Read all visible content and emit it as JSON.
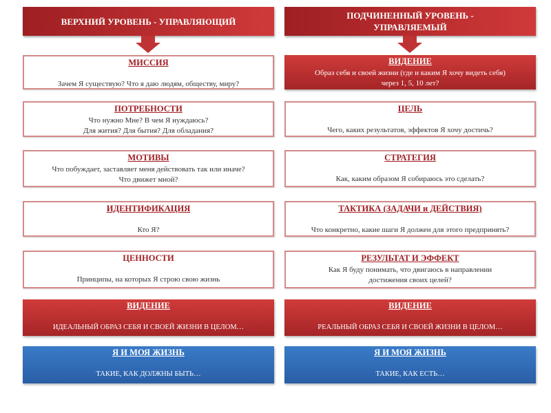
{
  "left": {
    "header": "ВЕРХНИЙ  УРОВЕНЬ - УПРАВЛЯЮЩИЙ",
    "boxes": [
      {
        "title": "МИССИЯ",
        "text": "Зачем Я существую? Что я даю людям, обществу, миру?"
      },
      {
        "title": "ПОТРЕБНОСТИ",
        "text": "Что нужно Мне? В чем Я нуждаюсь?",
        "text2": "Для жития? Для бытия? Для обладания?"
      },
      {
        "title": "МОТИВЫ",
        "text": "Что побуждает, заставляет меня действовать так или иначе?",
        "text2": "Что движет мной?"
      },
      {
        "title": "ИДЕНТИФИКАЦИЯ",
        "text": "Кто Я?"
      },
      {
        "title": "ЦЕННОСТИ",
        "text": "Принципы, на которых Я строю свою жизнь"
      },
      {
        "title": "ВИДЕНИЕ",
        "text": "ИДЕАЛЬНЫЙ ОБРАЗ СЕБЯ И СВОЕЙ ЖИЗНИ В ЦЕЛОМ…"
      },
      {
        "title": "Я И МОЯ ЖИЗНЬ",
        "text": "ТАКИЕ, КАК ДОЛЖНЫ БЫТЬ…"
      }
    ]
  },
  "right": {
    "header": "ПОДЧИНЕННЫЙ УРОВЕНЬ - УПРАВЛЯЕМЫЙ",
    "boxes": [
      {
        "title": "ВИДЕНИЕ",
        "text": "Образ себя и своей жизни (где и каким Я хочу видеть себя)",
        "text2": "через 1, 5, 10 лет?"
      },
      {
        "title": "ЦЕЛЬ",
        "text": "Чего, каких результатов, эффектов Я хочу достичь?"
      },
      {
        "title": "СТРАТЕГИЯ",
        "text": "Как, каким образом Я собираюсь это сделать?"
      },
      {
        "title": "ТАКТИКА (ЗАДАЧИ и ДЕЙСТВИЯ)",
        "text": "Что конкретно, какие шаги Я должен для этого предпринять?"
      },
      {
        "title": "РЕЗУЛЬТАТ И ЭФФЕКТ",
        "text": "Как Я буду понимать, что двигаюсь в направлении",
        "text2": "достижения своих целей?"
      },
      {
        "title": "ВИДЕНИЕ",
        "text": "РЕАЛЬНЫЙ ОБРАЗ СЕБЯ И СВОЕЙ ЖИЗНИ В ЦЕЛОМ…"
      },
      {
        "title": "Я И МОЯ ЖИЗНЬ",
        "text": "ТАКИЕ, КАК ЕСТЬ…"
      }
    ]
  },
  "colors": {
    "red": "#c03335",
    "blue": "#3370bd",
    "border": "#d48a8a",
    "title": "#a11d22"
  }
}
